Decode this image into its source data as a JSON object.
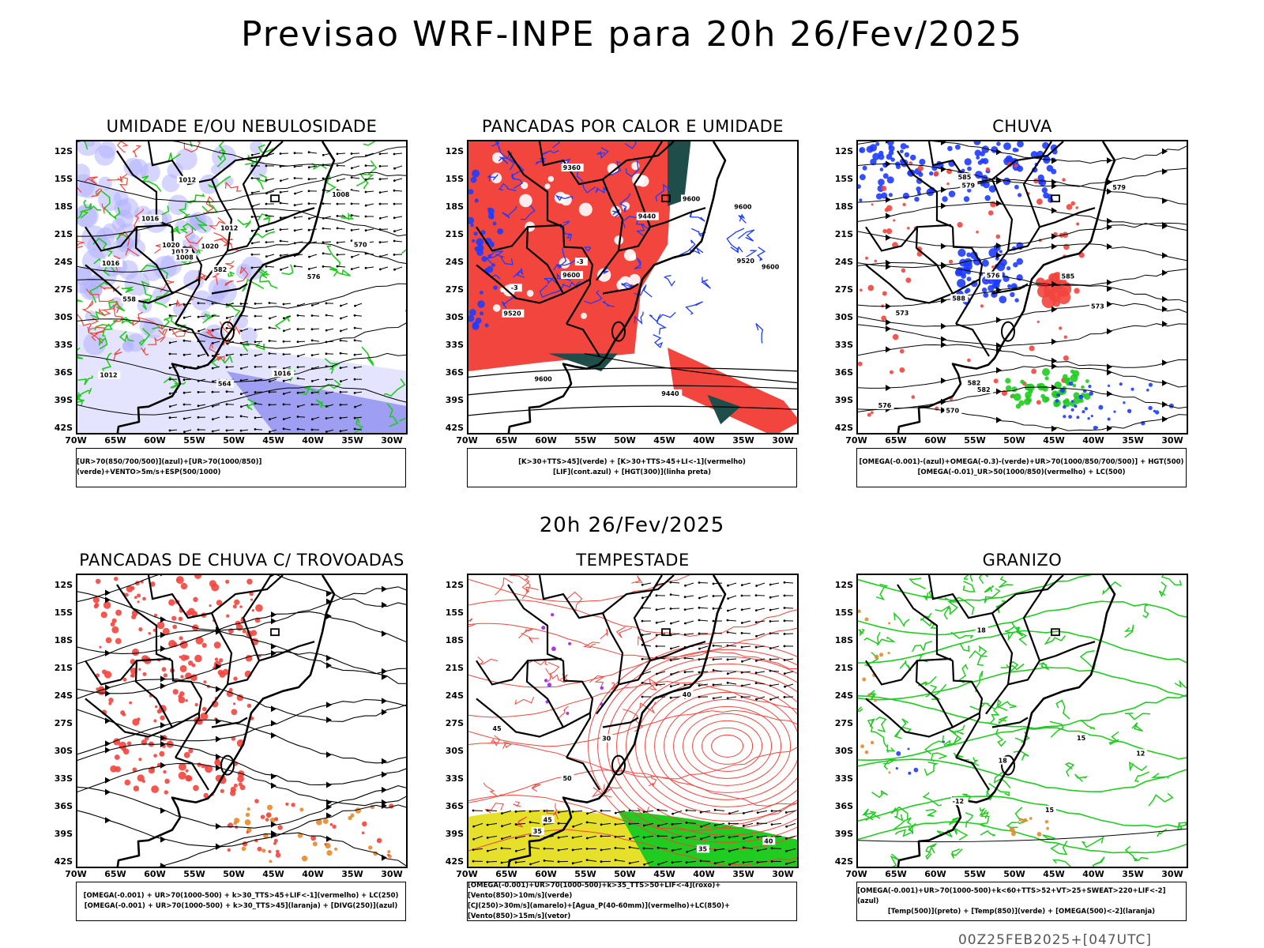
{
  "title": "Previsao WRF-INPE  para 20h 26/Fev/2025",
  "mid_date": "20h 26/Fev/2025",
  "footer": "00Z25FEB2025+[047UTC]",
  "lat_labels": [
    "12S",
    "15S",
    "18S",
    "21S",
    "24S",
    "27S",
    "30S",
    "33S",
    "36S",
    "39S",
    "42S"
  ],
  "lon_labels": [
    "70W",
    "65W",
    "60W",
    "55W",
    "50W",
    "45W",
    "40W",
    "35W",
    "30W"
  ],
  "colors": {
    "red": "#f2453d",
    "green": "#1fcc1f",
    "blue": "#1e3cff",
    "lavender": "#b3b3ff",
    "darkgreen": "#1f4d4a",
    "yellow": "#e6e02a",
    "orange": "#e68a2a",
    "purple": "#a020f0"
  },
  "panels": [
    {
      "id": "umidade",
      "title": "UMIDADE E/OU NEBULOSIDADE",
      "legend": [
        "[UR>70(850/700/500)](azul)+[UR>70(1000/850)](verde)+VENTO>5m/s+ESP(500/1000)"
      ],
      "contour_labels": [
        "1012",
        "1008",
        "1016",
        "1012",
        "1020",
        "1016",
        "1012",
        "1008",
        "1012",
        "1020",
        "1016",
        "582",
        "576",
        "570",
        "564",
        "558"
      ]
    },
    {
      "id": "pancadas-calor",
      "title": "PANCADAS POR CALOR E UMIDADE",
      "legend": [
        "[K>30+TTS>45](verde) + [K>30+TTS>45+LI<-1](vermelho)",
        "[LIF](cont.azul) + [HGT(300)](linha preta)"
      ],
      "contour_labels": [
        "9600",
        "9600",
        "9600",
        "9600",
        "9520",
        "9440",
        "9360",
        "9520",
        "9600",
        "9440",
        "-3",
        "-3"
      ]
    },
    {
      "id": "chuva",
      "title": "CHUVA",
      "legend": [
        "[OMEGA(-0.001)-(azul)+OMEGA(-0.3)-(verde)+UR>70(1000/850/700/500)] + HGT(500)",
        "[OMEGA(-0.01)_UR>50(1000/850)(vermelho) + LC(500)"
      ],
      "contour_labels": [
        "588",
        "585",
        "582",
        "579",
        "576",
        "573",
        "570",
        "585",
        "582",
        "579",
        "576",
        "573"
      ]
    },
    {
      "id": "trovoadas",
      "title": "PANCADAS DE CHUVA C/ TROVOADAS",
      "legend": [
        "[OMEGA(-0.001) + UR>70(1000-500) + k>30_TTS>45+LIF<-1](vermelho) + LC(250)",
        "[OMEGA(-0.001) + UR>70(1000-500) + k>30_TTS>45](laranja) + [DIVG(250)](azul)"
      ],
      "contour_labels": []
    },
    {
      "id": "tempestade",
      "title": "TEMPESTADE",
      "legend": [
        "[OMEGA(-0.001)+UR>70(1000-500)+k>35_TTS>50+LIF<-4](roxo)+[Vento(850)>10m/s](verde)",
        "[CJ(250)>30m/s](amarelo)+[Agua_P(40-60mm)](vermelho)+LC(850)+[Vento(850)>15m/s](vetor)"
      ],
      "contour_labels": [
        "50",
        "45",
        "40",
        "35",
        "30",
        "40",
        "45",
        "35"
      ]
    },
    {
      "id": "granizo",
      "title": "GRANIZO",
      "legend": [
        "[OMEGA(-0.001)+UR>70(1000-500)+k<60+TTS>52+VT>25+SWEAT>220+LIF<-2](azul)",
        "[Temp(500)](preto) + [Temp(850)](verde) + [OMEGA(500)<-2](laranja)"
      ],
      "contour_labels": [
        "-12",
        "15",
        "18",
        "15",
        "12",
        "18"
      ]
    }
  ]
}
